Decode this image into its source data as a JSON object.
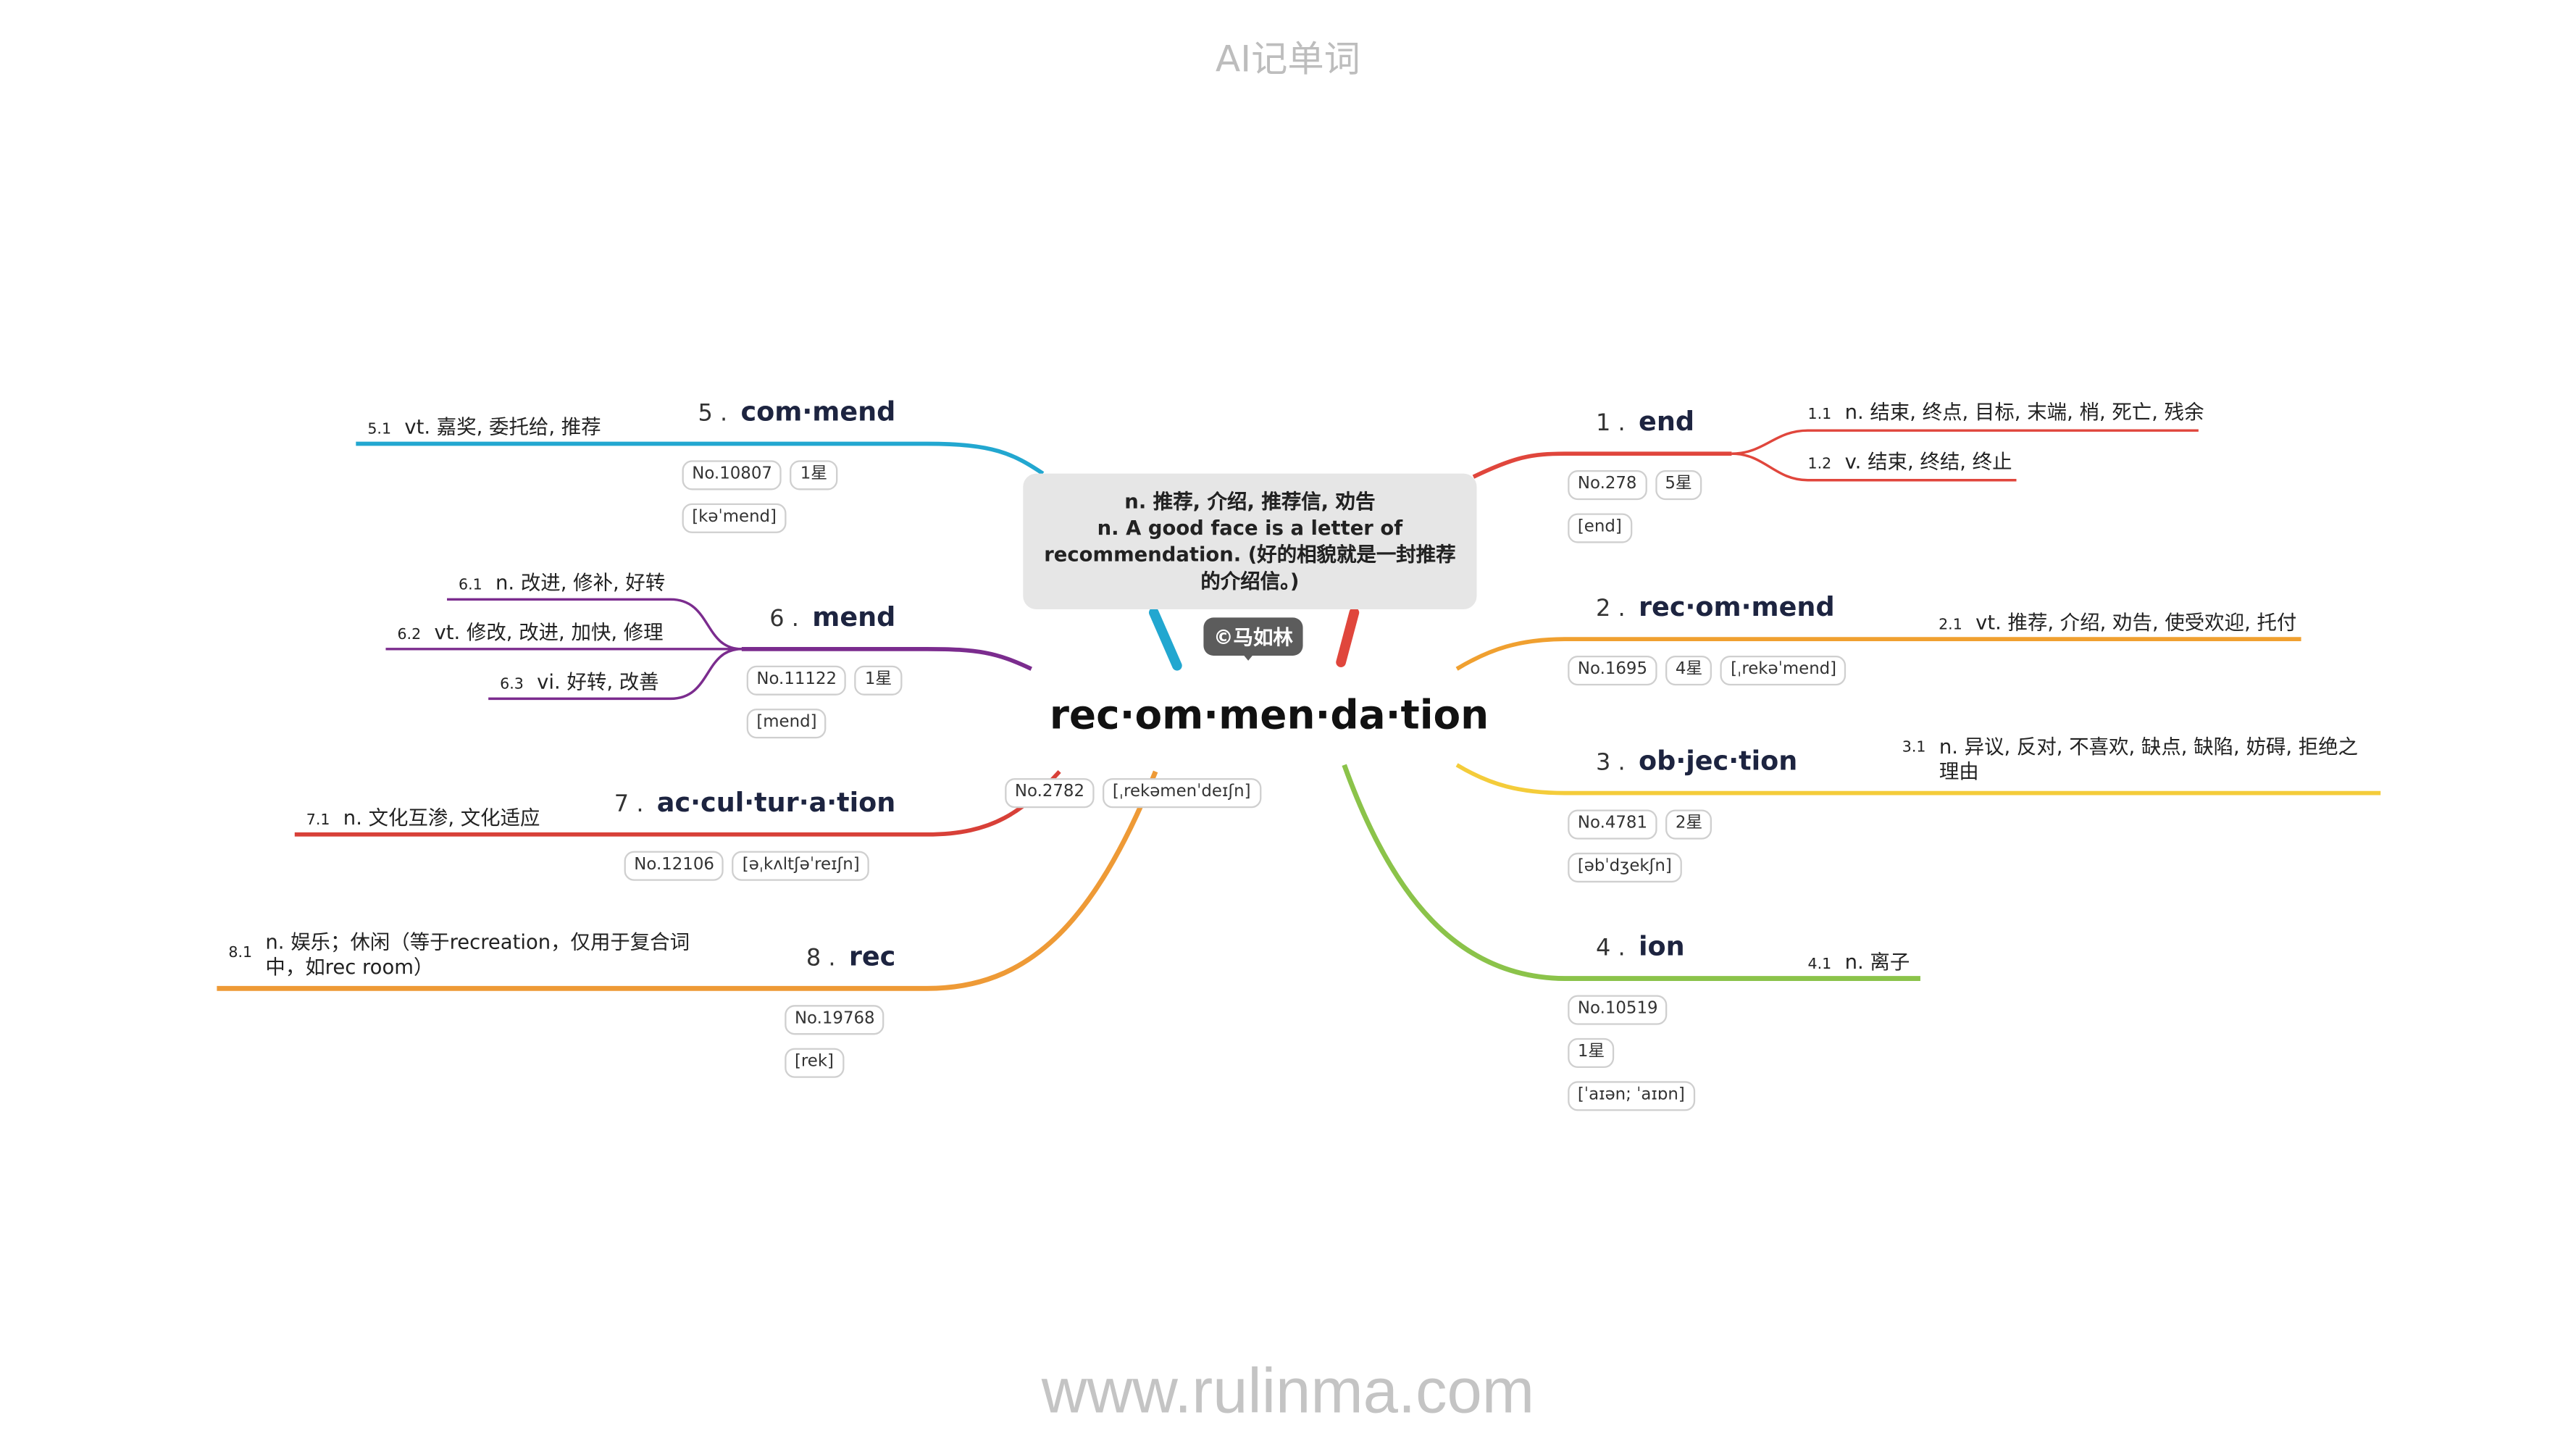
{
  "header": {
    "title": "AI记单词"
  },
  "footer": {
    "site": "www.rulinma.com"
  },
  "center": {
    "word": "rec·om·men·da·tion",
    "no": "No.2782",
    "phonetic": "[ˌrekəmenˈdeɪʃn]",
    "meaning_lines": [
      "n. 推荐, 介绍, 推荐信, 劝告",
      "n. A good face is a letter of recommendation. (好的相貌就是一封推荐的介绍信。)"
    ],
    "author": "©马如林"
  },
  "branches": [
    {
      "num": "1 .",
      "word": "end",
      "no": "No.278",
      "stars": "5星",
      "phonetic": "[end]",
      "color": "#e0463c",
      "defs": [
        {
          "num": "1.1",
          "text": "n. 结束, 终点, 目标, 末端, 梢, 死亡, 残余"
        },
        {
          "num": "1.2",
          "text": "v. 结束, 终结, 终止"
        }
      ]
    },
    {
      "num": "2 .",
      "word": "rec·om·mend",
      "no": "No.1695",
      "stars": "4星",
      "phonetic": "[ˌrekəˈmend]",
      "color": "#f0a030",
      "defs": [
        {
          "num": "2.1",
          "text": "vt. 推荐, 介绍, 劝告, 使受欢迎, 托付"
        }
      ]
    },
    {
      "num": "3 .",
      "word": "ob·jec·tion",
      "no": "No.4781",
      "stars": "2星",
      "phonetic": "[əbˈdʒekʃn]",
      "color": "#f4cc3a",
      "defs": [
        {
          "num": "3.1",
          "text": "n. 异议, 反对, 不喜欢, 缺点, 缺陷, 妨碍, 拒绝之理由"
        }
      ]
    },
    {
      "num": "4 .",
      "word": "ion",
      "no": "No.10519",
      "stars": "1星",
      "phonetic": "[ˈaɪən; ˈaɪɒn]",
      "color": "#8bc34a",
      "defs": [
        {
          "num": "4.1",
          "text": "n. 离子"
        }
      ]
    },
    {
      "num": "5 .",
      "word": "com·mend",
      "no": "No.10807",
      "stars": "1星",
      "phonetic": "[kəˈmend]",
      "color": "#22a7d0",
      "defs": [
        {
          "num": "5.1",
          "text": "vt. 嘉奖, 委托给, 推荐"
        }
      ]
    },
    {
      "num": "6 .",
      "word": "mend",
      "no": "No.11122",
      "stars": "1星",
      "phonetic": "[mend]",
      "color": "#7b2c8e",
      "defs": [
        {
          "num": "6.1",
          "text": "n. 改进, 修补, 好转"
        },
        {
          "num": "6.2",
          "text": "vt. 修改, 改进, 加快, 修理"
        },
        {
          "num": "6.3",
          "text": "vi. 好转, 改善"
        }
      ]
    },
    {
      "num": "7 .",
      "word": "ac·cul·tur·a·tion",
      "no": "No.12106",
      "phonetic": "[əˌkʌltʃəˈreɪʃn]",
      "color": "#d84038",
      "defs": [
        {
          "num": "7.1",
          "text": "n. 文化互渗, 文化适应"
        }
      ]
    },
    {
      "num": "8 .",
      "word": "rec",
      "no": "No.19768",
      "phonetic": "[rek]",
      "color": "#ee9a36",
      "defs": [
        {
          "num": "8.1",
          "text": "n. 娱乐；休闲（等于recreation，仅用于复合词中，如rec room）"
        }
      ]
    }
  ]
}
